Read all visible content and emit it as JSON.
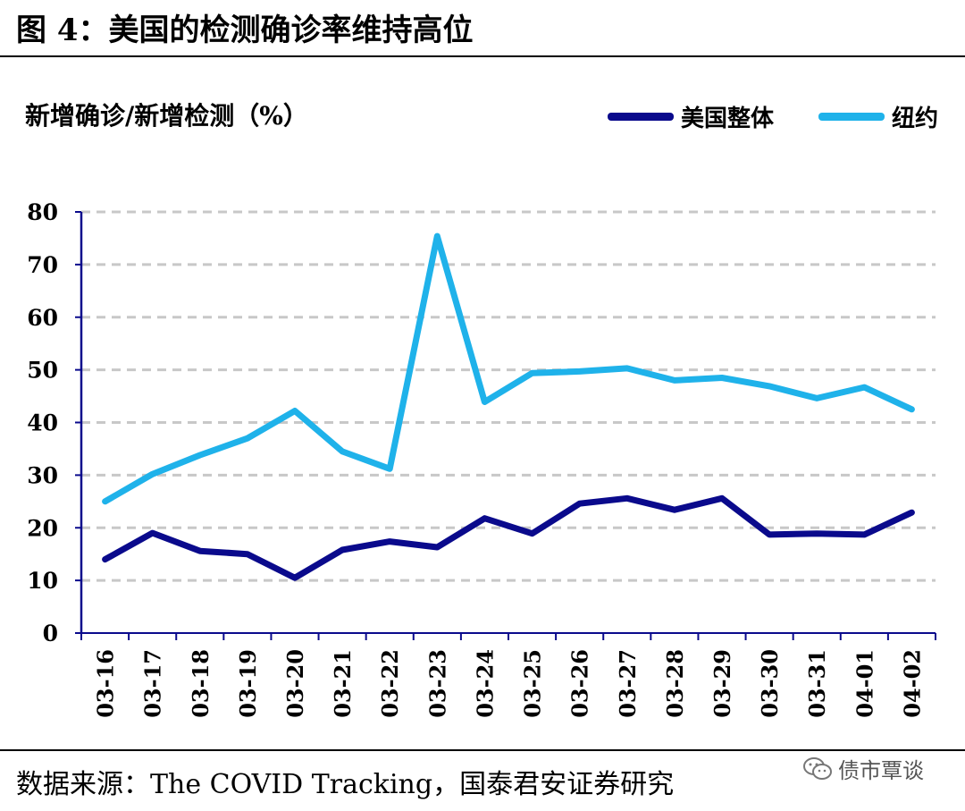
{
  "figure_title": "图 4：美国的检测确诊率维持高位",
  "source_note": "数据来源：The COVID Tracking，国泰君安证券研究",
  "watermark": {
    "text": "债市覃谈",
    "icon": "wechat-icon"
  },
  "colors": {
    "us_total": "#0a0a8c",
    "new_york": "#1fb2ea",
    "grid": "#c8c8c8",
    "axis": "#0a0a8c"
  },
  "chart_data": {
    "type": "line",
    "title": "图 4：美国的检测确诊率维持高位",
    "ylabel": "新增确诊/新增检测（%）",
    "xlabel": "",
    "ylim": [
      0,
      80
    ],
    "yticks": [
      0,
      10,
      20,
      30,
      40,
      50,
      60,
      70,
      80
    ],
    "grid": true,
    "legend": "top-right",
    "categories": [
      "03-16",
      "03-17",
      "03-18",
      "03-19",
      "03-20",
      "03-21",
      "03-22",
      "03-23",
      "03-24",
      "03-25",
      "03-26",
      "03-27",
      "03-28",
      "03-29",
      "03-30",
      "03-31",
      "04-01",
      "04-02"
    ],
    "series": [
      {
        "name": "美国整体",
        "color": "#0a0a8c",
        "values": [
          14.0,
          19.0,
          15.6,
          15.0,
          10.5,
          15.8,
          17.4,
          16.3,
          21.8,
          18.9,
          24.6,
          25.6,
          23.4,
          25.6,
          18.7,
          18.9,
          18.7,
          22.9
        ]
      },
      {
        "name": "纽约",
        "color": "#1fb2ea",
        "values": [
          25.0,
          30.2,
          33.8,
          37.0,
          42.2,
          34.5,
          31.2,
          75.4,
          43.9,
          49.4,
          49.7,
          50.3,
          48.0,
          48.5,
          46.9,
          44.6,
          46.7,
          42.5
        ]
      }
    ]
  }
}
